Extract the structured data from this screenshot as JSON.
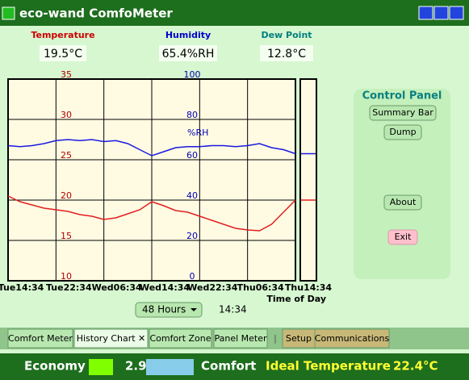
{
  "window": {
    "title": "eco-wand ComfoMeter"
  },
  "readings": [
    {
      "label": "Temperature",
      "value": "19.5°C",
      "color": "#cc0000"
    },
    {
      "label": "Humidity",
      "value": "65.4%RH",
      "color": "#0000cc"
    },
    {
      "label": "Dew Point",
      "value": "12.8°C",
      "color": "#007f7f"
    }
  ],
  "chart": {
    "type": "line",
    "x": [
      0,
      2,
      4,
      6,
      8,
      10,
      12,
      14,
      16,
      18,
      20,
      22,
      24,
      26,
      28,
      30,
      32,
      34,
      36,
      38,
      40,
      42,
      44,
      46,
      48
    ],
    "xlim": [
      0,
      48
    ],
    "xticks": [
      {
        "value": 0,
        "label": "Tue14:34"
      },
      {
        "value": 8,
        "label": "Tue22:34"
      },
      {
        "value": 16,
        "label": "Wed06:34"
      },
      {
        "value": 24,
        "label": "Wed14:34"
      },
      {
        "value": 32,
        "label": "Wed22:34"
      },
      {
        "value": 40,
        "label": "Thu06:34"
      },
      {
        "value": 48,
        "label": "Thu14:34"
      }
    ],
    "x_label": "Time of Day",
    "ylim": [
      10,
      35
    ],
    "yticks": [
      10,
      15,
      20,
      25,
      30,
      35
    ],
    "y2lim": [
      0,
      100
    ],
    "y2ticks": [
      0,
      20,
      40,
      60,
      80,
      100
    ],
    "y2_label": "%RH",
    "grid": true,
    "series": [
      {
        "color": "#e02020",
        "values": [
          20.5,
          19.8,
          19.4,
          19.0,
          18.8,
          18.6,
          18.2,
          18.0,
          17.6,
          17.8,
          18.3,
          18.8,
          19.8,
          19.3,
          18.7,
          18.5,
          18.0,
          17.5,
          17.0,
          16.5,
          16.3,
          16.2,
          17.0,
          18.5,
          20.0
        ]
      },
      {
        "color": "#1a1ae0",
        "axis": "y2",
        "values": [
          67,
          66.5,
          67,
          68,
          69.5,
          70,
          69.5,
          70,
          69,
          69.5,
          68,
          65,
          62,
          64,
          66,
          66.5,
          66.5,
          67,
          67,
          66.5,
          67,
          68,
          66,
          65,
          63
        ]
      }
    ]
  },
  "controls": {
    "range": "48 Hours",
    "time": "14:34"
  },
  "control_panel": {
    "title": "Control Panel",
    "buttons": [
      "Summary Bar",
      "Dump",
      "About",
      "Exit"
    ]
  },
  "tabs": [
    "Comfort Meter",
    "History Chart ✕",
    "Comfort Zone",
    "Panel Meter",
    "|",
    "Setup",
    "Communications"
  ],
  "status": {
    "economy_label": "Economy",
    "economy_value": "2.9°C",
    "comfort_label": "Comfort",
    "ideal_label": "Ideal Temperature",
    "ideal_value": "22.4°C"
  }
}
